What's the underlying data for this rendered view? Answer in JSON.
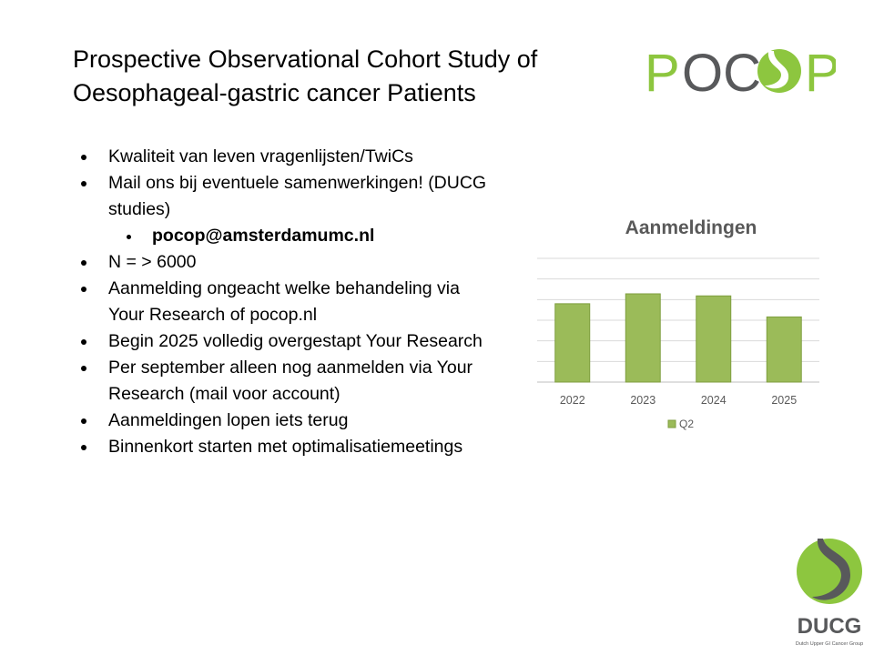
{
  "title_line1": "Prospective Observational Cohort Study of",
  "title_line2": "Oesophageal-gastric cancer Patients",
  "logo_pocop": {
    "text_left": "POC",
    "text_right": "P"
  },
  "bullets": [
    {
      "text": "Kwaliteit van leven vragenlijsten/TwiCs"
    },
    {
      "text": "Mail ons bij eventuele samenwerkingen! (DUCG studies)"
    },
    {
      "text": "pocop@amsterdamumc.nl"
    },
    {
      "text": "N = > 6000"
    },
    {
      "text": "Aanmelding ongeacht welke behandeling via Your Research of pocop.nl"
    },
    {
      "text": "Begin 2025 volledig overgestapt Your Research"
    },
    {
      "text": "Per september alleen nog aanmelden via Your Research (mail voor account)"
    },
    {
      "text": "Aanmeldingen lopen iets terug"
    },
    {
      "text": "Binnenkort starten met optimalisatiemeetings"
    }
  ],
  "chart_data": {
    "type": "bar",
    "title": "Aanmeldingen",
    "categories": [
      "2022",
      "2023",
      "2024",
      "2025"
    ],
    "series": [
      {
        "name": "Q2",
        "values": [
          380,
          428,
          418,
          316
        ]
      }
    ],
    "ylim": [
      0,
      600
    ],
    "grid": true,
    "legend": "bottom",
    "y_axis_labels_shown": false,
    "bar_color": "#9BBB59"
  },
  "logo_ducg": {
    "name": "DUCG",
    "tagline": "Dutch Upper GI Cancer Group"
  }
}
